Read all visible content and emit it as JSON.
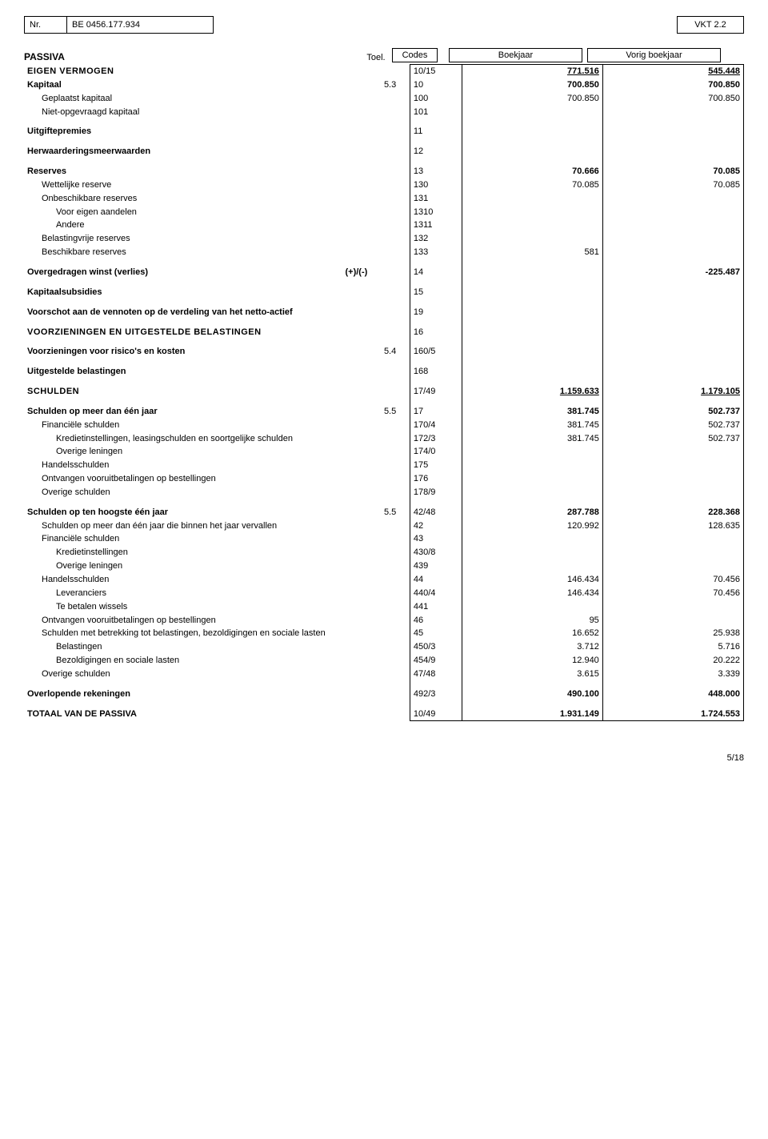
{
  "header": {
    "nr_label": "Nr.",
    "entity_id": "BE 0456.177.934",
    "doc_code": "VKT 2.2"
  },
  "column_headers": {
    "toel": "Toel.",
    "codes": "Codes",
    "boekjaar": "Boekjaar",
    "vorig": "Vorig boekjaar"
  },
  "section_title": "PASSIVA",
  "rows": [
    {
      "label": "EIGEN VERMOGEN",
      "toel": "",
      "code": "10/15",
      "cur": "771.516",
      "prev": "545.448",
      "cls": "b sc",
      "u_cur": true,
      "u_prev": true,
      "top": true
    },
    {
      "label": "Kapitaal",
      "toel": "5.3",
      "code": "10",
      "cur": "700.850",
      "prev": "700.850",
      "cls": "b"
    },
    {
      "label": "Geplaatst kapitaal",
      "toel": "",
      "code": "100",
      "cur": "700.850",
      "prev": "700.850",
      "ind": 1
    },
    {
      "label": "Niet-opgevraagd kapitaal",
      "toel": "",
      "code": "101",
      "cur": "",
      "prev": "",
      "ind": 1
    },
    {
      "label": "Uitgiftepremies",
      "toel": "",
      "code": "11",
      "cur": "",
      "prev": "",
      "cls": "b",
      "gap_before": true
    },
    {
      "label": "Herwaarderingsmeerwaarden",
      "toel": "",
      "code": "12",
      "cur": "",
      "prev": "",
      "cls": "b",
      "gap_before": true
    },
    {
      "label": "Reserves",
      "toel": "",
      "code": "13",
      "cur": "70.666",
      "prev": "70.085",
      "cls": "b",
      "gap_before": true
    },
    {
      "label": "Wettelijke reserve",
      "toel": "",
      "code": "130",
      "cur": "70.085",
      "prev": "70.085",
      "ind": 1
    },
    {
      "label": "Onbeschikbare reserves",
      "toel": "",
      "code": "131",
      "cur": "",
      "prev": "",
      "ind": 1
    },
    {
      "label": "Voor eigen aandelen",
      "toel": "",
      "code": "1310",
      "cur": "",
      "prev": "",
      "ind": 2
    },
    {
      "label": "Andere",
      "toel": "",
      "code": "1311",
      "cur": "",
      "prev": "",
      "ind": 2
    },
    {
      "label": "Belastingvrije reserves",
      "toel": "",
      "code": "132",
      "cur": "",
      "prev": "",
      "ind": 1
    },
    {
      "label": "Beschikbare reserves",
      "toel": "",
      "code": "133",
      "cur": "581",
      "prev": "",
      "ind": 1
    },
    {
      "label": "Overgedragen winst (verlies)",
      "suffix": "(+)/(-)",
      "toel": "",
      "code": "14",
      "cur": "",
      "prev": "-225.487",
      "cls": "b",
      "gap_before": true
    },
    {
      "label": "Kapitaalsubsidies",
      "toel": "",
      "code": "15",
      "cur": "",
      "prev": "",
      "cls": "b",
      "gap_before": true
    },
    {
      "label": "Voorschot aan de vennoten op de verdeling van het netto-actief",
      "toel": "",
      "code": "19",
      "cur": "",
      "prev": "",
      "cls": "b",
      "gap_before": true
    },
    {
      "label": "VOORZIENINGEN EN UITGESTELDE BELASTINGEN",
      "toel": "",
      "code": "16",
      "cur": "",
      "prev": "",
      "cls": "b sc",
      "gap_before": true
    },
    {
      "label": "Voorzieningen voor risico's en kosten",
      "toel": "5.4",
      "code": "160/5",
      "cur": "",
      "prev": "",
      "cls": "b",
      "gap_before": true
    },
    {
      "label": "Uitgestelde belastingen",
      "toel": "",
      "code": "168",
      "cur": "",
      "prev": "",
      "cls": "b",
      "gap_before": true
    },
    {
      "label": "SCHULDEN",
      "toel": "",
      "code": "17/49",
      "cur": "1.159.633",
      "prev": "1.179.105",
      "cls": "b sc",
      "u_cur": true,
      "u_prev": true,
      "gap_before": true
    },
    {
      "label": "Schulden op meer dan één jaar",
      "toel": "5.5",
      "code": "17",
      "cur": "381.745",
      "prev": "502.737",
      "cls": "b",
      "gap_before": true
    },
    {
      "label": "Financiële schulden",
      "toel": "",
      "code": "170/4",
      "cur": "381.745",
      "prev": "502.737",
      "ind": 1
    },
    {
      "label": "Kredietinstellingen, leasingschulden en soortgelijke schulden",
      "toel": "",
      "code": "172/3",
      "cur": "381.745",
      "prev": "502.737",
      "ind": 2
    },
    {
      "label": "Overige leningen",
      "toel": "",
      "code": "174/0",
      "cur": "",
      "prev": "",
      "ind": 2
    },
    {
      "label": "Handelsschulden",
      "toel": "",
      "code": "175",
      "cur": "",
      "prev": "",
      "ind": 1
    },
    {
      "label": "Ontvangen vooruitbetalingen op bestellingen",
      "toel": "",
      "code": "176",
      "cur": "",
      "prev": "",
      "ind": 1
    },
    {
      "label": "Overige schulden",
      "toel": "",
      "code": "178/9",
      "cur": "",
      "prev": "",
      "ind": 1
    },
    {
      "label": "Schulden op ten hoogste één jaar",
      "toel": "5.5",
      "code": "42/48",
      "cur": "287.788",
      "prev": "228.368",
      "cls": "b",
      "gap_before": true
    },
    {
      "label": "Schulden op meer dan één jaar die binnen het jaar vervallen",
      "toel": "",
      "code": "42",
      "cur": "120.992",
      "prev": "128.635",
      "ind": 1
    },
    {
      "label": "Financiële schulden",
      "toel": "",
      "code": "43",
      "cur": "",
      "prev": "",
      "ind": 1
    },
    {
      "label": "Kredietinstellingen",
      "toel": "",
      "code": "430/8",
      "cur": "",
      "prev": "",
      "ind": 2
    },
    {
      "label": "Overige leningen",
      "toel": "",
      "code": "439",
      "cur": "",
      "prev": "",
      "ind": 2
    },
    {
      "label": "Handelsschulden",
      "toel": "",
      "code": "44",
      "cur": "146.434",
      "prev": "70.456",
      "ind": 1
    },
    {
      "label": "Leveranciers",
      "toel": "",
      "code": "440/4",
      "cur": "146.434",
      "prev": "70.456",
      "ind": 2
    },
    {
      "label": "Te betalen wissels",
      "toel": "",
      "code": "441",
      "cur": "",
      "prev": "",
      "ind": 2
    },
    {
      "label": "Ontvangen vooruitbetalingen op bestellingen",
      "toel": "",
      "code": "46",
      "cur": "95",
      "prev": "",
      "ind": 1
    },
    {
      "label": "Schulden met betrekking tot belastingen, bezoldigingen en sociale lasten",
      "toel": "",
      "code": "45",
      "cur": "16.652",
      "prev": "25.938",
      "ind": 1
    },
    {
      "label": "Belastingen",
      "toel": "",
      "code": "450/3",
      "cur": "3.712",
      "prev": "5.716",
      "ind": 2
    },
    {
      "label": "Bezoldigingen en sociale lasten",
      "toel": "",
      "code": "454/9",
      "cur": "12.940",
      "prev": "20.222",
      "ind": 2
    },
    {
      "label": "Overige schulden",
      "toel": "",
      "code": "47/48",
      "cur": "3.615",
      "prev": "3.339",
      "ind": 1
    },
    {
      "label": "Overlopende rekeningen",
      "toel": "",
      "code": "492/3",
      "cur": "490.100",
      "prev": "448.000",
      "cls": "b",
      "gap_before": true
    },
    {
      "label": "TOTAAL VAN DE PASSIVA",
      "toel": "",
      "code": "10/49",
      "cur": "1.931.149",
      "prev": "1.724.553",
      "cls": "b",
      "gap_before": true,
      "bot": true
    }
  ],
  "footer": "5/18"
}
